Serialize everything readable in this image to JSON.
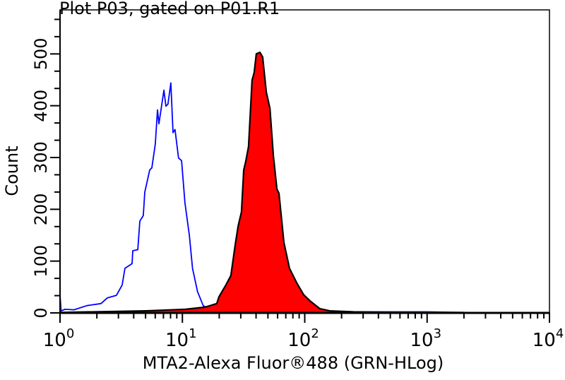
{
  "chart_data": {
    "type": "area",
    "title": "Plot P03, gated on P01.R1",
    "xlabel": "MTA2-Alexa Fluor®488 (GRN-HLog)",
    "ylabel": "Count",
    "x_scale": "log",
    "xlim": [
      1,
      10000
    ],
    "ylim": [
      0,
      585
    ],
    "x_ticks": [
      {
        "base": "10",
        "exp": "0"
      },
      {
        "base": "10",
        "exp": "1"
      },
      {
        "base": "10",
        "exp": "2"
      },
      {
        "base": "10",
        "exp": "3"
      },
      {
        "base": "10",
        "exp": "4"
      }
    ],
    "y_ticks": [
      "0",
      "100",
      "200",
      "300",
      "400",
      "500"
    ],
    "grid": false,
    "series": [
      {
        "style": "outline",
        "color": "#0000ff",
        "x": [
          1.0,
          1.02,
          1.1,
          1.3,
          1.66,
          2.16,
          2.44,
          2.89,
          3.22,
          3.39,
          3.88,
          3.93,
          4.32,
          4.49,
          4.79,
          4.93,
          5.41,
          5.63,
          6.01,
          6.26,
          6.43,
          7.06,
          7.33,
          7.62,
          8.05,
          8.39,
          8.7,
          9.3,
          9.85,
          10.5,
          11.4,
          12.1,
          13.3,
          14.8,
          16.7,
          20,
          50,
          200,
          1000,
          2000
        ],
        "y": [
          34,
          4,
          7,
          6,
          14,
          18,
          29,
          34,
          54,
          86,
          95,
          120,
          122,
          177,
          188,
          233,
          276,
          280,
          326,
          392,
          365,
          430,
          399,
          403,
          444,
          348,
          354,
          299,
          294,
          212,
          150,
          86,
          41,
          14,
          7,
          3,
          2,
          2,
          2,
          1
        ]
      },
      {
        "style": "filled",
        "color": "#ff0000",
        "outline_color": "#000000",
        "x": [
          1.0,
          5.05,
          10.6,
          15.3,
          19.1,
          19.9,
          22.7,
          24.9,
          27.0,
          28.5,
          30.4,
          31.7,
          32.9,
          34.7,
          37.1,
          38.6,
          40.2,
          43.0,
          45.3,
          48.5,
          51.9,
          55.4,
          59.2,
          61.6,
          67.6,
          75,
          86,
          98,
          112,
          133,
          160,
          250,
          600,
          10000
        ],
        "y": [
          1,
          4,
          7,
          11,
          18,
          31,
          54,
          72,
          131,
          167,
          195,
          276,
          292,
          321,
          449,
          464,
          500,
          503,
          494,
          426,
          395,
          303,
          239,
          231,
          136,
          86,
          58,
          35,
          22,
          8,
          4,
          2,
          1,
          0
        ]
      }
    ]
  }
}
